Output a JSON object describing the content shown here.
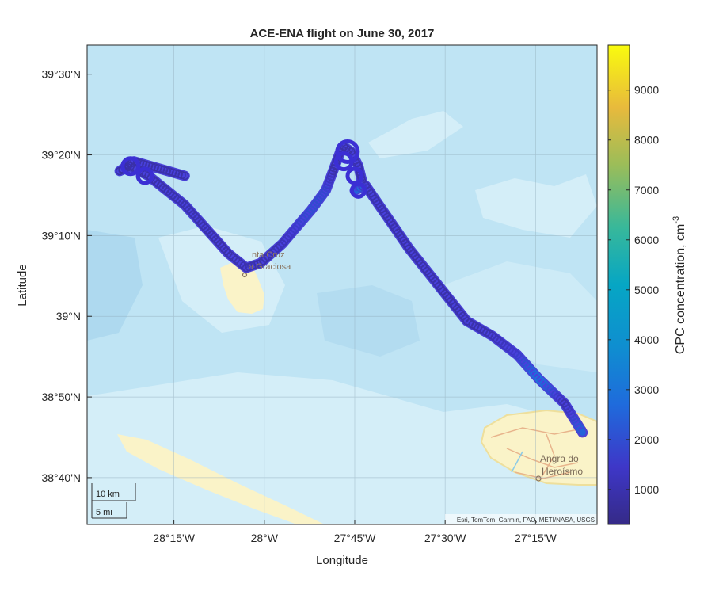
{
  "title": "ACE-ENA flight on June 30, 2017",
  "xlabel": "Longitude",
  "ylabel": "Latitude",
  "lon_ticks": [
    {
      "value": -28.25,
      "label": "28°15'W"
    },
    {
      "value": -28.0,
      "label": "28°W"
    },
    {
      "value": -27.75,
      "label": "27°45'W"
    },
    {
      "value": -27.5,
      "label": "27°30'W"
    },
    {
      "value": -27.25,
      "label": "27°15'W"
    }
  ],
  "lat_ticks": [
    {
      "value": 39.5,
      "label": "39°30'N"
    },
    {
      "value": 39.3333,
      "label": "39°20'N"
    },
    {
      "value": 39.1667,
      "label": "39°10'N"
    },
    {
      "value": 39.0,
      "label": "39°N"
    },
    {
      "value": 38.8333,
      "label": "38°50'N"
    },
    {
      "value": 38.6667,
      "label": "38°40'N"
    }
  ],
  "map_labels": {
    "santa_cruz_line1": "nta Cruz",
    "santa_cruz_line2": "a Graciosa",
    "angra_line1": "Angra do",
    "angra_line2": "Heroísmo"
  },
  "attribution": "Esri, TomTom, Garmin, FAO, METI/NASA, USGS",
  "scalebar": {
    "km_label": "10 km",
    "mi_label": "5 mi"
  },
  "colorbar": {
    "label": "CPC concentration, cm",
    "label_superscript": "-3",
    "range": [
      300,
      9900
    ],
    "colormap": "parula",
    "ticks": [
      1000,
      2000,
      3000,
      4000,
      5000,
      6000,
      7000,
      8000,
      9000
    ],
    "tick_labels": [
      "1000",
      "2000",
      "3000",
      "4000",
      "5000",
      "6000",
      "7000",
      "8000",
      "9000"
    ]
  },
  "colors": {
    "ocean": "#bfe4f4",
    "shallow": "#d4eef8",
    "deep": "#aed9ef",
    "land": "#faf3c8",
    "road": "#e8b48c",
    "track": "#3b2fd4"
  },
  "chart_data": {
    "type": "scatter",
    "title": "ACE-ENA flight on June 30, 2017",
    "xlabel": "Longitude",
    "ylabel": "Latitude",
    "xlim": [
      -28.49,
      -27.08
    ],
    "ylim": [
      38.57,
      39.56
    ],
    "color_variable": "CPC concentration, cm-3",
    "series": [
      {
        "x": [
          -28.22,
          -28.36,
          -28.4,
          -28.37,
          -28.32,
          -28.22,
          -28.1,
          -28.05,
          -28.01,
          -27.95,
          -27.87,
          -27.83,
          -27.81,
          -27.79,
          -27.78,
          -27.76,
          -27.74,
          -27.73,
          -27.75,
          -27.72,
          -27.6,
          -27.44,
          -27.37,
          -27.3,
          -27.24,
          -27.17,
          -27.12
        ],
        "y": [
          39.29,
          39.32,
          39.3,
          39.31,
          39.29,
          39.23,
          39.13,
          39.1,
          39.11,
          39.15,
          39.22,
          39.26,
          39.3,
          39.34,
          39.35,
          39.34,
          39.31,
          39.28,
          39.26,
          39.27,
          39.14,
          38.99,
          38.96,
          38.92,
          38.87,
          38.82,
          38.76
        ],
        "cpc": [
          900,
          900,
          800,
          900,
          900,
          1000,
          900,
          1000,
          900,
          1100,
          2000,
          1800,
          900,
          900,
          900,
          900,
          1000,
          900,
          3000,
          1000,
          900,
          900,
          1000,
          1500,
          3000,
          900,
          2500
        ]
      }
    ]
  }
}
